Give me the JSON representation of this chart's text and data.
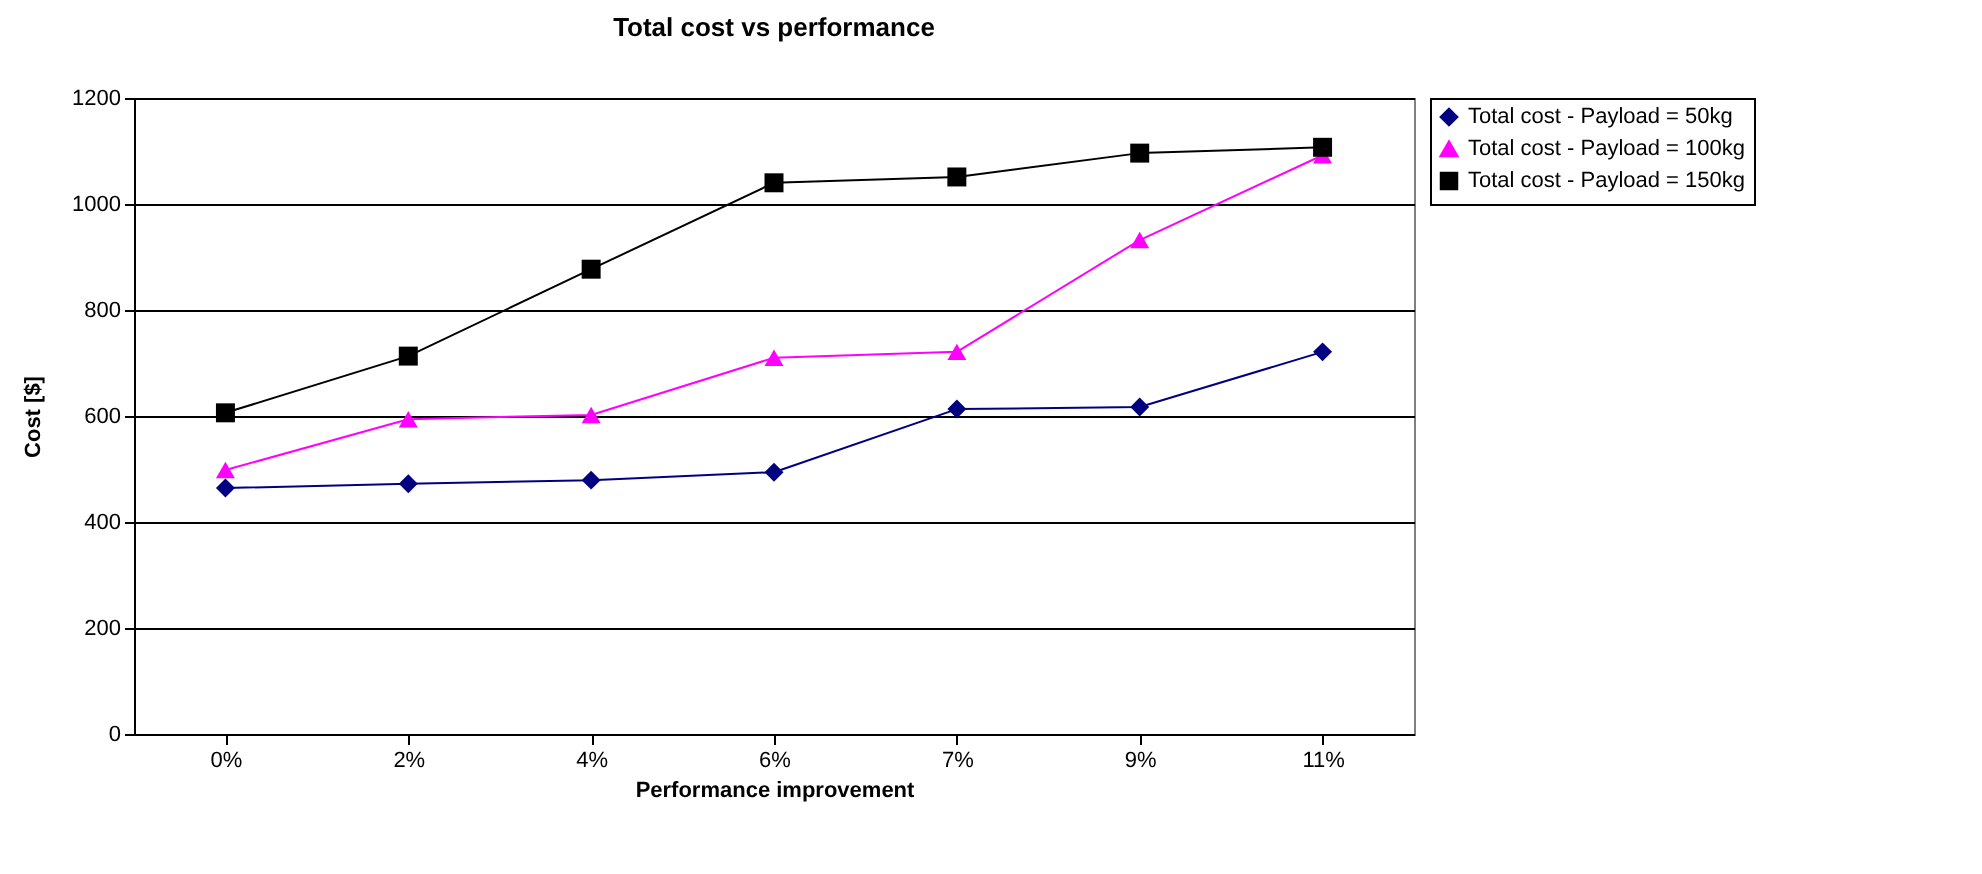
{
  "chart_data": {
    "type": "line",
    "title": "Total cost vs performance",
    "xlabel": "Performance improvement",
    "ylabel": "Cost [$]",
    "categories": [
      "0%",
      "2%",
      "4%",
      "6%",
      "7%",
      "9%",
      "11%"
    ],
    "series": [
      {
        "name": "Total cost - Payload = 50kg",
        "color": "#000080",
        "marker": "diamond",
        "values": [
          464,
          472,
          479,
          494,
          613,
          617,
          721
        ]
      },
      {
        "name": "Total cost - Payload = 100kg",
        "color": "#ff00ff",
        "marker": "triangle",
        "values": [
          498,
          594,
          602,
          710,
          721,
          932,
          1092
        ]
      },
      {
        "name": "Total cost - Payload = 150kg",
        "color": "#000000",
        "marker": "square",
        "values": [
          606,
          713,
          877,
          1040,
          1051,
          1096,
          1107
        ]
      }
    ],
    "ylim": [
      0,
      1200
    ],
    "yticks": [
      0,
      200,
      400,
      600,
      800,
      1000,
      1200
    ],
    "grid": "y",
    "legend": "right"
  }
}
